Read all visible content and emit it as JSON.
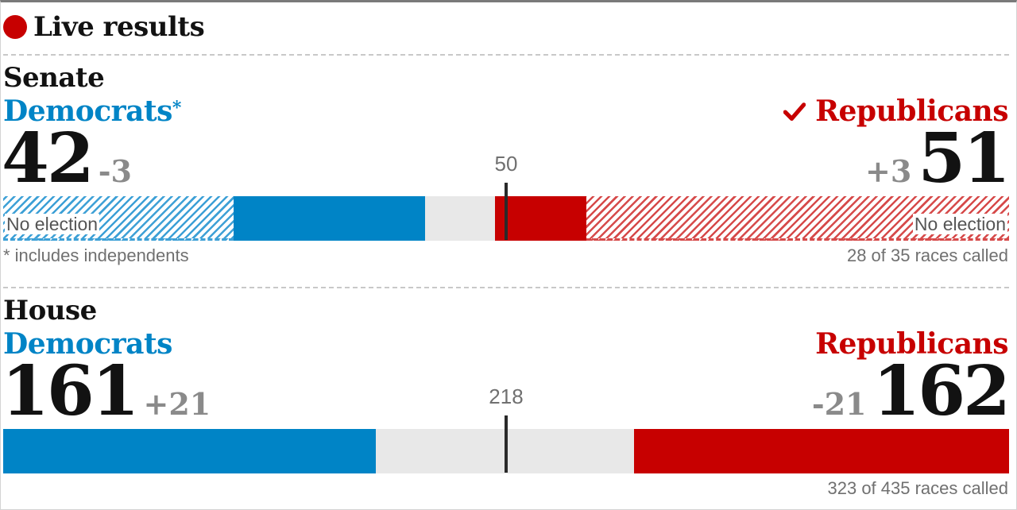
{
  "header": {
    "live_label": "Live results"
  },
  "colors": {
    "democrat": "#0084c6",
    "republican": "#c70000",
    "uncalled": "#e8e8e8",
    "live_dot": "#c70000"
  },
  "senate": {
    "title": "Senate",
    "dem_label": "Democrats",
    "dem_asterisk": "*",
    "rep_label": "Republicans",
    "rep_called_icon": "checkmark-icon",
    "dem_seats": "42",
    "dem_change": "-3",
    "rep_seats": "51",
    "rep_change": "+3",
    "majority": "50",
    "no_election_left": "No election",
    "no_election_right": "No election",
    "footnote": "* includes independents",
    "races_called": "28 of 35 races called"
  },
  "house": {
    "title": "House",
    "dem_label": "Democrats",
    "rep_label": "Republicans",
    "dem_seats": "161",
    "dem_change": "+21",
    "rep_seats": "162",
    "rep_change": "-21",
    "majority": "218",
    "races_called": "323 of 435 races called"
  }
}
